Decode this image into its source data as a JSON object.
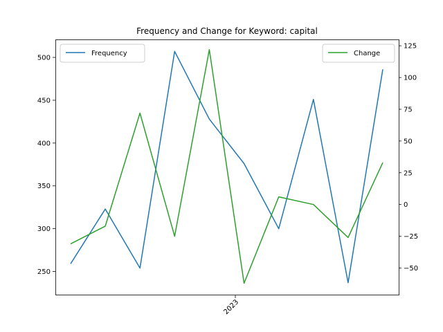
{
  "chart_data": {
    "type": "line",
    "title": "Frequency and Change for Keyword: capital",
    "x_tick_label": "2023",
    "x": [
      1,
      2,
      3,
      4,
      5,
      6,
      7,
      8,
      9,
      10
    ],
    "series": [
      {
        "name": "Frequency",
        "axis": "left",
        "color": "#1f77b4",
        "values": [
          259,
          323,
          254,
          507,
          428,
          376,
          300,
          451,
          237,
          486
        ]
      },
      {
        "name": "Change",
        "axis": "right",
        "color": "#2ca02c",
        "values": [
          -31,
          -17,
          72,
          -25,
          122,
          -62,
          6,
          0,
          -26,
          33
        ]
      }
    ],
    "left_axis": {
      "ylim": [
        223,
        521
      ],
      "ticks": [
        250,
        300,
        350,
        400,
        450,
        500
      ]
    },
    "right_axis": {
      "ylim": [
        -71,
        130
      ],
      "ticks": [
        -50,
        -25,
        0,
        25,
        50,
        75,
        100,
        125
      ]
    },
    "legend_left": "upper left",
    "legend_right": "upper right",
    "grid": false
  }
}
